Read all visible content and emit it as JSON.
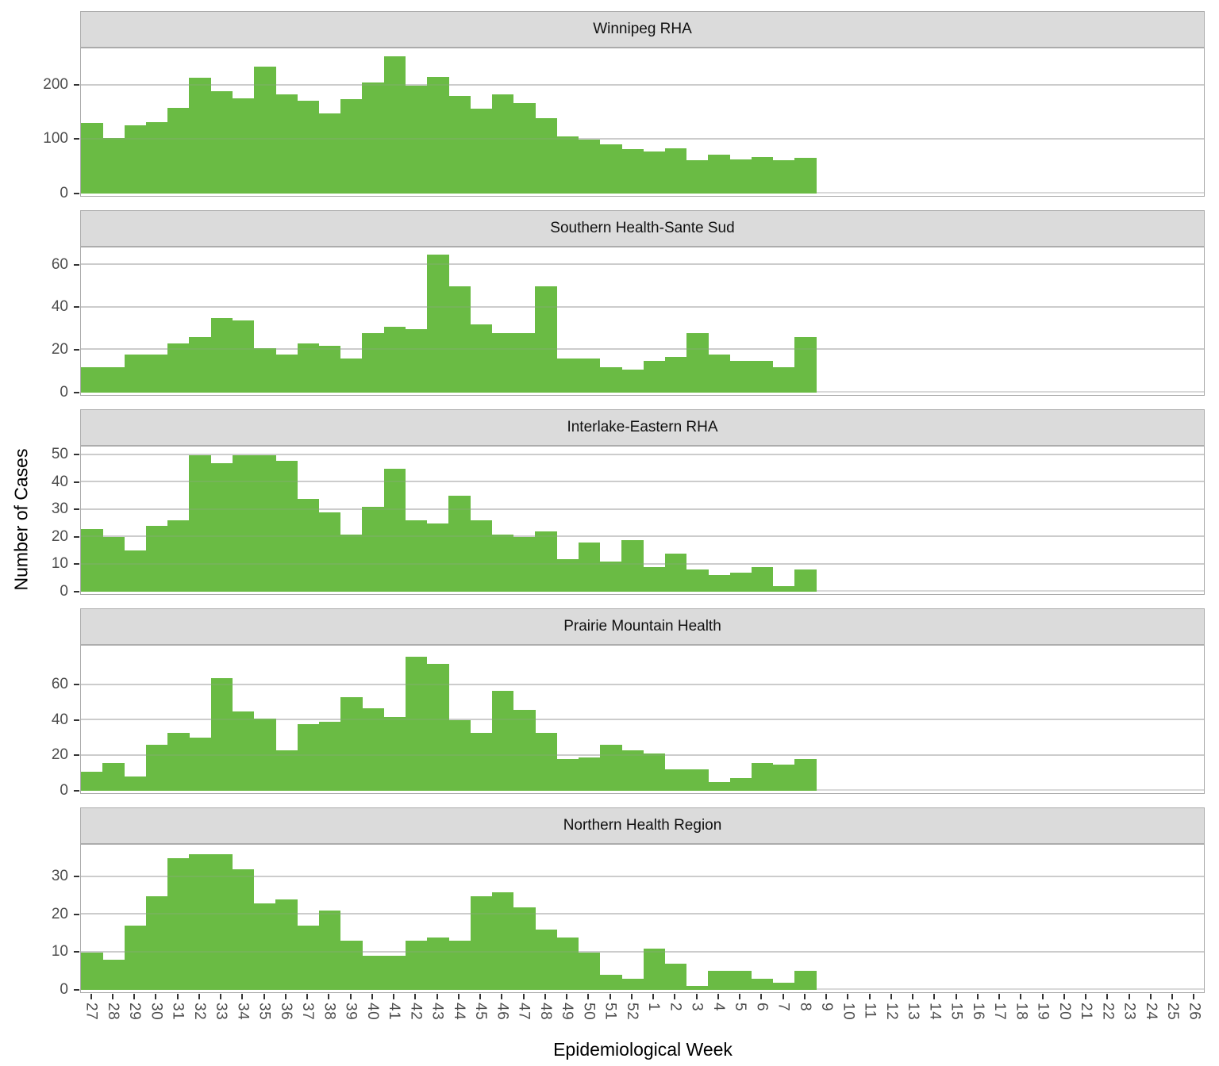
{
  "chart_data": {
    "type": "bar",
    "subtype": "faceted-epidemic-curve-histogram",
    "title": "",
    "xlabel": "Epidemiological Week",
    "ylabel": "Number of Cases",
    "grid": "major horizontal gridlines only",
    "legend_position": "none",
    "x_categories": [
      "27",
      "28",
      "29",
      "30",
      "31",
      "32",
      "33",
      "34",
      "35",
      "36",
      "37",
      "38",
      "39",
      "40",
      "41",
      "42",
      "43",
      "44",
      "45",
      "46",
      "47",
      "48",
      "49",
      "50",
      "51",
      "52",
      "1",
      "2",
      "3",
      "4",
      "5",
      "6",
      "7",
      "8",
      "9",
      "10",
      "11",
      "12",
      "13",
      "14",
      "15",
      "16",
      "17",
      "18",
      "19",
      "20",
      "21",
      "22",
      "23",
      "24",
      "25",
      "26"
    ],
    "bar_categories": [
      "27",
      "28",
      "29",
      "30",
      "31",
      "32",
      "33",
      "34",
      "35",
      "36",
      "37",
      "38",
      "39",
      "40",
      "41",
      "42",
      "43",
      "44",
      "45",
      "46",
      "47",
      "48",
      "49",
      "50",
      "51",
      "52",
      "1",
      "2",
      "3",
      "4",
      "5",
      "6",
      "7",
      "8"
    ],
    "facets": [
      {
        "title": "Winnipeg RHA",
        "y_ticks": [
          0,
          100,
          200
        ],
        "y_axis_max": 267,
        "values": [
          130,
          102,
          126,
          132,
          158,
          214,
          189,
          176,
          235,
          184,
          172,
          148,
          174,
          205,
          254,
          199,
          216,
          181,
          157,
          183,
          167,
          139,
          105,
          100,
          91,
          82,
          78,
          84,
          61,
          72,
          63,
          68,
          61,
          66
        ]
      },
      {
        "title": "Southern Health-Sante Sud",
        "y_ticks": [
          0,
          20,
          40,
          60
        ],
        "y_axis_max": 68,
        "values": [
          12,
          12,
          18,
          18,
          23,
          26,
          35,
          34,
          21,
          18,
          23,
          22,
          16,
          28,
          31,
          30,
          65,
          50,
          32,
          28,
          28,
          50,
          16,
          16,
          12,
          11,
          15,
          17,
          28,
          18,
          15,
          15,
          12,
          26
        ]
      },
      {
        "title": "Interlake-Eastern RHA",
        "y_ticks": [
          0,
          10,
          20,
          30,
          40,
          50
        ],
        "y_axis_max": 52.8,
        "values": [
          23,
          20,
          15,
          24,
          26,
          50,
          47,
          50,
          50,
          48,
          34,
          29,
          21,
          31,
          45,
          26,
          25,
          35,
          26,
          21,
          20,
          22,
          12,
          18,
          11,
          19,
          9,
          14,
          8,
          6,
          7,
          9,
          2,
          8
        ]
      },
      {
        "title": "Prairie Mountain Health",
        "y_ticks": [
          0,
          20,
          40,
          60
        ],
        "y_axis_max": 82,
        "values": [
          11,
          16,
          8,
          26,
          33,
          30,
          64,
          45,
          41,
          23,
          38,
          39,
          53,
          47,
          42,
          76,
          72,
          40,
          33,
          57,
          46,
          33,
          18,
          19,
          26,
          23,
          21,
          12,
          12,
          5,
          7,
          16,
          15,
          18
        ]
      },
      {
        "title": "Northern Health Region",
        "y_ticks": [
          0,
          10,
          20,
          30
        ],
        "y_axis_max": 38.4,
        "values": [
          10,
          8,
          17,
          25,
          35,
          36,
          36,
          32,
          23,
          24,
          17,
          21,
          13,
          9,
          9,
          13,
          14,
          13,
          25,
          26,
          22,
          16,
          14,
          10,
          4,
          3,
          11,
          7,
          1,
          5,
          5,
          3,
          2,
          5
        ]
      }
    ],
    "colors": {
      "bar": "#6ABB44",
      "strip_background": "#DBDBDB",
      "gridline": "#D9D9D9",
      "panel_border": "#A9A9A9",
      "tick_text": "#4D4D4D"
    }
  }
}
